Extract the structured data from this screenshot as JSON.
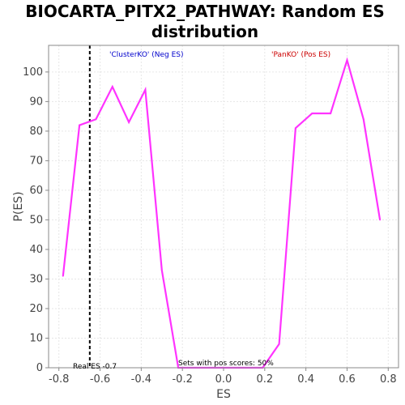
{
  "chart_data": {
    "type": "line",
    "title_lines": [
      "BIOCARTA_PITX2_PATHWAY: Random ES",
      "distribution"
    ],
    "xlabel": "ES",
    "ylabel": "P(ES)",
    "xlim": [
      -0.85,
      0.85
    ],
    "ylim": [
      0,
      109
    ],
    "xticks": [
      -0.8,
      -0.6,
      -0.4,
      -0.2,
      0.0,
      0.2,
      0.4,
      0.6,
      0.8
    ],
    "xtick_labels": [
      "-0.8",
      "-0.6",
      "-0.4",
      "-0.2",
      "0.0",
      "0.2",
      "0.4",
      "0.6",
      "0.8"
    ],
    "yticks": [
      0,
      10,
      20,
      30,
      40,
      50,
      60,
      70,
      80,
      90,
      100
    ],
    "ytick_labels": [
      "0",
      "10",
      "20",
      "30",
      "40",
      "50",
      "60",
      "70",
      "80",
      "90",
      "100"
    ],
    "grid": true,
    "series": [
      {
        "color": "#ff33ff",
        "x": [
          -0.78,
          -0.7,
          -0.62,
          -0.54,
          -0.46,
          -0.38,
          -0.3,
          -0.22,
          -0.14,
          -0.06,
          0.02,
          0.1,
          0.19,
          0.27,
          0.35,
          0.43,
          0.52,
          0.6,
          0.68,
          0.76
        ],
        "y": [
          31,
          82,
          84,
          95,
          83,
          94,
          33,
          0,
          0,
          0,
          0,
          0,
          0,
          8,
          81,
          86,
          86,
          104,
          84,
          50
        ]
      }
    ],
    "real_es": {
      "value": -0.65,
      "color": "#000000"
    },
    "annotations": {
      "neg_label": "'ClusterKO' (Neg ES)",
      "neg_color": "#0000cc",
      "pos_label": "'PanKO' (Pos ES)",
      "pos_color": "#cc0000",
      "real_es_label": "Real ES -0.7",
      "pos_scores_label": "Sets with pos scores: 50%"
    }
  }
}
